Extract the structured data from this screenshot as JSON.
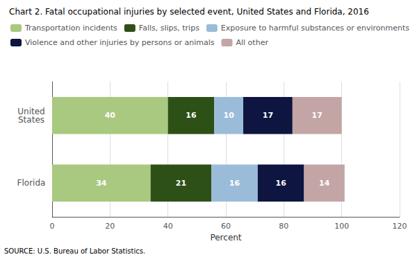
{
  "chart_data": {
    "type": "bar",
    "orientation": "horizontal",
    "stacked": true,
    "title": "Chart 2. Fatal occupational injuries by selected event, United States and Florida, 2016",
    "categories": [
      "United\nStates",
      "Florida"
    ],
    "series": [
      {
        "name": "Transportation incidents",
        "color": "#a8c97f",
        "values": [
          40,
          34
        ]
      },
      {
        "name": "Falls, slips, trips",
        "color": "#2d5016",
        "values": [
          16,
          21
        ]
      },
      {
        "name": "Exposure to harmful substances or environments",
        "color": "#9bbcd8",
        "values": [
          10,
          16
        ]
      },
      {
        "name": "Violence and other injuries by persons or animals",
        "color": "#0d1540",
        "values": [
          17,
          16
        ]
      },
      {
        "name": "All other",
        "color": "#c4a5a5",
        "values": [
          17,
          14
        ]
      }
    ],
    "xlabel": "Percent",
    "xlim": [
      0,
      120
    ],
    "xticks": [
      0,
      20,
      40,
      60,
      80,
      100,
      120
    ],
    "grid": true,
    "data_labels": true,
    "legend": "top",
    "annotations": [
      "SOURCE: U.S. Bureau of Labor Statistics."
    ]
  }
}
